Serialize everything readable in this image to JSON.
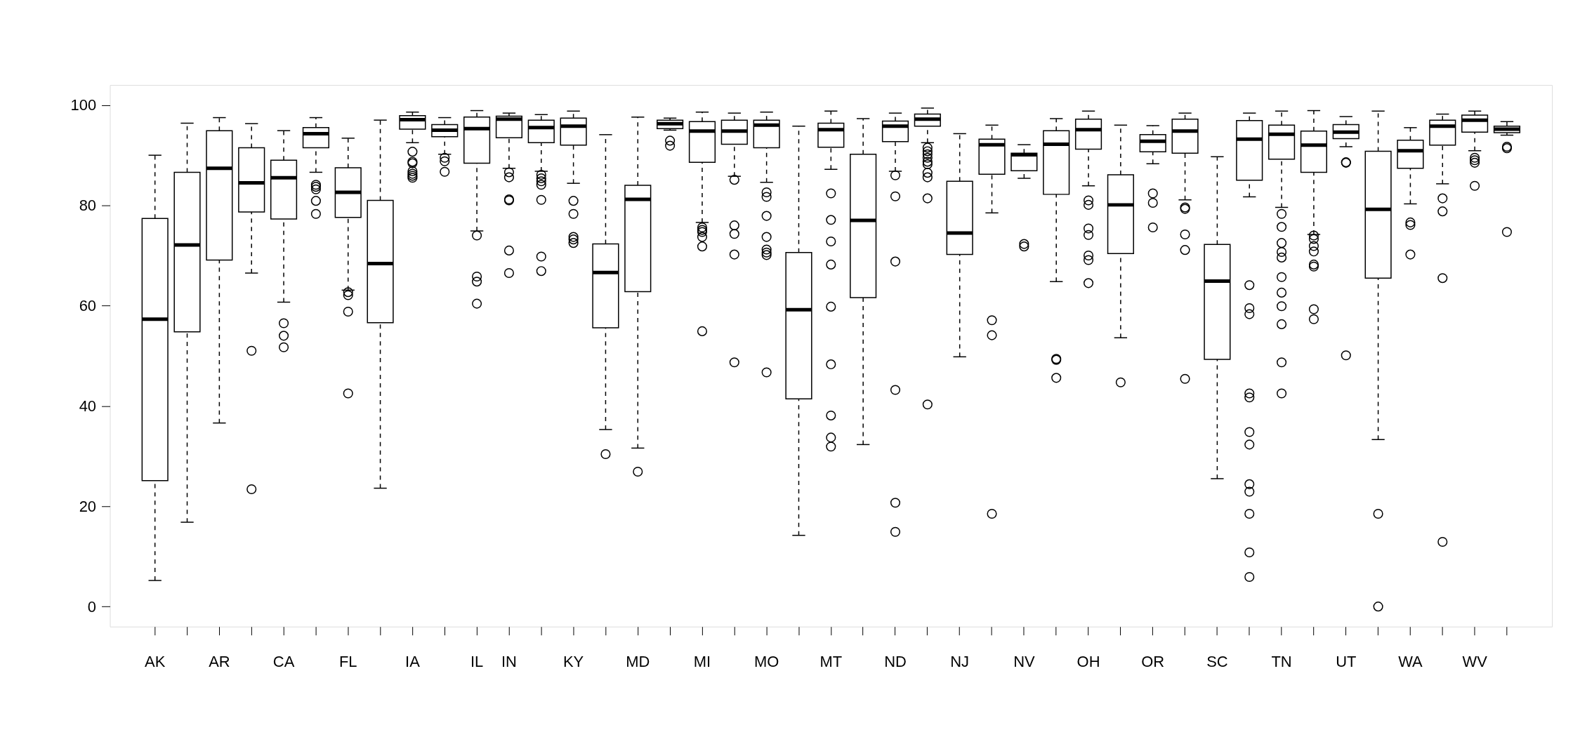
{
  "chart_data": {
    "type": "box",
    "categories": [
      "AK",
      null,
      "AR",
      null,
      "CA",
      null,
      "FL",
      null,
      "IA",
      null,
      "IL",
      "IN",
      null,
      "KY",
      null,
      "MD",
      null,
      "MI",
      null,
      "MO",
      null,
      "MT",
      null,
      "ND",
      null,
      "NJ",
      null,
      "NV",
      null,
      "OH",
      null,
      "OR",
      null,
      "SC",
      null,
      "TN",
      null,
      "UT",
      null,
      "WA",
      null,
      "WV",
      null
    ],
    "ylim": [
      -4,
      104
    ],
    "yticks": [
      0,
      20,
      40,
      60,
      80,
      100
    ],
    "grid": false,
    "boxes": [
      {
        "low": 5.2,
        "q1": 25.1,
        "median": 57.3,
        "q3": 77.4,
        "high": 90.0
      },
      {
        "low": 16.8,
        "q1": 54.8,
        "median": 72.1,
        "q3": 86.6,
        "high": 96.4
      },
      {
        "low": 36.6,
        "q1": 69.1,
        "median": 87.4,
        "q3": 94.9,
        "high": 97.5
      },
      {
        "low": 66.5,
        "q1": 78.7,
        "median": 84.5,
        "q3": 91.5,
        "high": 96.3,
        "outliers": [
          51.0,
          23.4
        ]
      },
      {
        "low": 60.7,
        "q1": 77.3,
        "median": 85.5,
        "q3": 89.0,
        "high": 94.9,
        "outliers": [
          56.5,
          54.0,
          51.7
        ]
      },
      {
        "low": 86.6,
        "q1": 91.5,
        "median": 94.3,
        "q3": 95.5,
        "high": 97.5,
        "outliers": [
          84.1,
          83.7,
          83.2,
          80.9,
          78.3
        ]
      },
      {
        "low": 63.1,
        "q1": 77.6,
        "median": 82.6,
        "q3": 87.5,
        "high": 93.4,
        "outliers": [
          62.7,
          62.1,
          58.8,
          42.5
        ]
      },
      {
        "low": 23.6,
        "q1": 56.6,
        "median": 68.4,
        "q3": 81.0,
        "high": 97.0
      },
      {
        "low": 92.5,
        "q1": 95.2,
        "median": 97.1,
        "q3": 97.9,
        "high": 98.6,
        "outliers": [
          90.7,
          88.7,
          88.4,
          86.8,
          86.3,
          85.9,
          85.5
        ]
      },
      {
        "low": 90.2,
        "q1": 93.7,
        "median": 95.0,
        "q3": 96.1,
        "high": 97.5,
        "outliers": [
          89.5,
          88.8,
          86.7
        ]
      },
      {
        "low": 74.9,
        "q1": 88.4,
        "median": 95.3,
        "q3": 97.6,
        "high": 98.9,
        "outliers": [
          74.0,
          65.8,
          64.8,
          60.4
        ]
      },
      {
        "low": 87.4,
        "q1": 93.5,
        "median": 97.2,
        "q3": 97.8,
        "high": 98.4,
        "outliers": [
          86.6,
          85.6,
          81.2,
          81.0,
          71.0,
          66.5
        ]
      },
      {
        "low": 86.8,
        "q1": 92.5,
        "median": 95.5,
        "q3": 97.0,
        "high": 98.1,
        "outliers": [
          86.1,
          85.4,
          84.8,
          84.1,
          81.1,
          69.8,
          66.9
        ]
      },
      {
        "low": 84.4,
        "q1": 92.0,
        "median": 95.8,
        "q3": 97.4,
        "high": 98.8,
        "outliers": [
          80.9,
          78.3,
          73.7,
          73.2,
          72.5
        ]
      },
      {
        "low": 35.3,
        "q1": 55.6,
        "median": 66.6,
        "q3": 72.3,
        "high": 94.1,
        "outliers": [
          30.4
        ]
      },
      {
        "low": 31.6,
        "q1": 62.8,
        "median": 81.2,
        "q3": 84.0,
        "high": 97.6,
        "outliers": [
          26.9
        ]
      },
      {
        "low": 95.0,
        "q1": 95.3,
        "median": 96.3,
        "q3": 97.0,
        "high": 97.4,
        "outliers": [
          92.9,
          91.9
        ]
      },
      {
        "low": 76.6,
        "q1": 88.6,
        "median": 94.8,
        "q3": 96.7,
        "high": 98.6,
        "outliers": [
          75.6,
          75.1,
          74.7,
          73.7,
          71.8,
          54.9
        ]
      },
      {
        "low": 85.8,
        "q1": 92.2,
        "median": 94.8,
        "q3": 97.0,
        "high": 98.4,
        "outliers": [
          85.1,
          76.0,
          74.3,
          70.2,
          48.7
        ]
      },
      {
        "low": 84.6,
        "q1": 91.5,
        "median": 96.0,
        "q3": 97.0,
        "high": 98.6,
        "outliers": [
          82.6,
          81.7,
          77.9,
          73.7,
          71.2,
          70.6,
          70.1,
          46.7
        ]
      },
      {
        "low": 14.2,
        "q1": 41.4,
        "median": 59.2,
        "q3": 70.6,
        "high": 95.8
      },
      {
        "low": 87.2,
        "q1": 91.6,
        "median": 95.1,
        "q3": 96.4,
        "high": 98.8,
        "outliers": [
          82.4,
          77.1,
          72.8,
          68.2,
          59.8,
          48.3,
          38.1,
          33.7,
          31.9
        ]
      },
      {
        "low": 32.3,
        "q1": 61.6,
        "median": 77.0,
        "q3": 90.2,
        "high": 97.3
      },
      {
        "low": 86.8,
        "q1": 92.7,
        "median": 95.8,
        "q3": 96.8,
        "high": 98.4,
        "outliers": [
          86.0,
          81.8,
          68.8,
          43.2,
          20.7,
          14.9
        ]
      },
      {
        "low": 92.5,
        "q1": 95.8,
        "median": 97.2,
        "q3": 98.2,
        "high": 99.4,
        "outliers": [
          91.5,
          90.8,
          90.2,
          89.5,
          88.7,
          88.2,
          86.5,
          85.6,
          81.4,
          40.3
        ]
      },
      {
        "low": 49.8,
        "q1": 70.2,
        "median": 74.5,
        "q3": 84.8,
        "high": 94.3
      },
      {
        "low": 78.5,
        "q1": 86.2,
        "median": 92.1,
        "q3": 93.2,
        "high": 96.0,
        "outliers": [
          57.1,
          54.1,
          18.5
        ]
      },
      {
        "low": 85.4,
        "q1": 86.9,
        "median": 90.1,
        "q3": 90.4,
        "high": 92.1,
        "outliers": [
          72.3,
          71.8
        ]
      },
      {
        "low": 64.8,
        "q1": 82.2,
        "median": 92.2,
        "q3": 94.9,
        "high": 97.3,
        "outliers": [
          49.4,
          49.2,
          45.6
        ]
      },
      {
        "low": 83.9,
        "q1": 91.2,
        "median": 95.1,
        "q3": 97.2,
        "high": 98.8,
        "outliers": [
          81.0,
          80.1,
          75.4,
          74.1,
          70.0,
          69.1,
          64.5
        ]
      },
      {
        "low": 53.6,
        "q1": 70.4,
        "median": 80.1,
        "q3": 86.1,
        "high": 96.0,
        "outliers": [
          44.7
        ]
      },
      {
        "low": 88.3,
        "q1": 90.7,
        "median": 92.8,
        "q3": 94.1,
        "high": 95.9,
        "outliers": [
          82.4,
          80.5,
          75.6
        ]
      },
      {
        "low": 81.1,
        "q1": 90.4,
        "median": 94.8,
        "q3": 97.2,
        "high": 98.4,
        "outliers": [
          79.6,
          79.3,
          74.2,
          71.1,
          45.4
        ]
      },
      {
        "low": 25.5,
        "q1": 49.3,
        "median": 64.9,
        "q3": 72.2,
        "high": 89.7
      },
      {
        "low": 81.7,
        "q1": 85.0,
        "median": 93.2,
        "q3": 96.9,
        "high": 98.4,
        "outliers": [
          64.1,
          59.5,
          58.3,
          42.5,
          41.7,
          34.8,
          32.3,
          24.4,
          22.9,
          18.5,
          10.8,
          5.9
        ]
      },
      {
        "low": 79.6,
        "q1": 89.2,
        "median": 94.2,
        "q3": 96.0,
        "high": 98.8,
        "outliers": [
          78.3,
          75.7,
          72.5,
          70.7,
          69.6,
          65.7,
          62.6,
          59.9,
          56.3,
          48.7,
          42.5
        ]
      },
      {
        "low": 74.2,
        "q1": 86.6,
        "median": 92.0,
        "q3": 94.8,
        "high": 98.9,
        "outliers": [
          74.0,
          73.3,
          71.9,
          70.8,
          68.2,
          67.8,
          59.3,
          57.3
        ]
      },
      {
        "low": 91.7,
        "q1": 93.3,
        "median": 94.6,
        "q3": 96.1,
        "high": 97.7,
        "outliers": [
          88.6,
          88.5,
          50.1
        ]
      },
      {
        "low": 33.3,
        "q1": 65.5,
        "median": 79.2,
        "q3": 90.8,
        "high": 98.8,
        "outliers": [
          18.5,
          0
        ]
      },
      {
        "low": 80.3,
        "q1": 87.4,
        "median": 90.9,
        "q3": 93.0,
        "high": 95.5,
        "outliers": [
          76.6,
          76.1,
          70.2
        ]
      },
      {
        "low": 84.3,
        "q1": 92.0,
        "median": 95.8,
        "q3": 97.0,
        "high": 98.2,
        "outliers": [
          81.4,
          78.8,
          65.5,
          12.9
        ]
      },
      {
        "low": 90.9,
        "q1": 94.6,
        "median": 97.0,
        "q3": 98.0,
        "high": 98.8,
        "outliers": [
          89.5,
          89.0,
          88.5,
          83.9
        ]
      },
      {
        "low": 94.0,
        "q1": 94.5,
        "median": 95.2,
        "q3": 95.8,
        "high": 96.7,
        "outliers": [
          91.7,
          91.4,
          74.7
        ]
      }
    ]
  }
}
